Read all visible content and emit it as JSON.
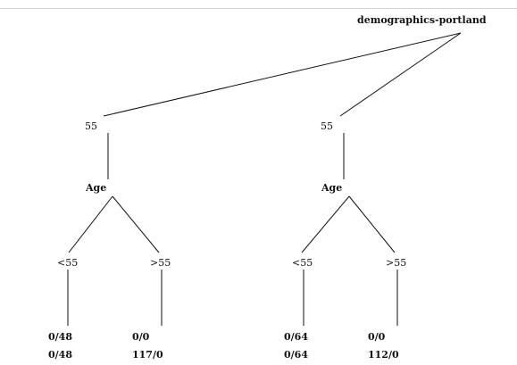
{
  "tree": {
    "root_label": "demographics-portland",
    "branches": [
      {
        "value": "55",
        "attribute": "Age",
        "children": [
          {
            "condition": "<55",
            "line1": "0/48",
            "line2": "0/48"
          },
          {
            "condition": ">55",
            "line1": "0/0",
            "line2": "117/0"
          }
        ]
      },
      {
        "value": "55",
        "attribute": "Age",
        "children": [
          {
            "condition": "<55",
            "line1": "0/64",
            "line2": "0/64"
          },
          {
            "condition": ">55",
            "line1": "0/0",
            "line2": "112/0"
          }
        ]
      }
    ]
  },
  "colors": {
    "edge": "#111111",
    "divider": "#d6d6d6"
  }
}
